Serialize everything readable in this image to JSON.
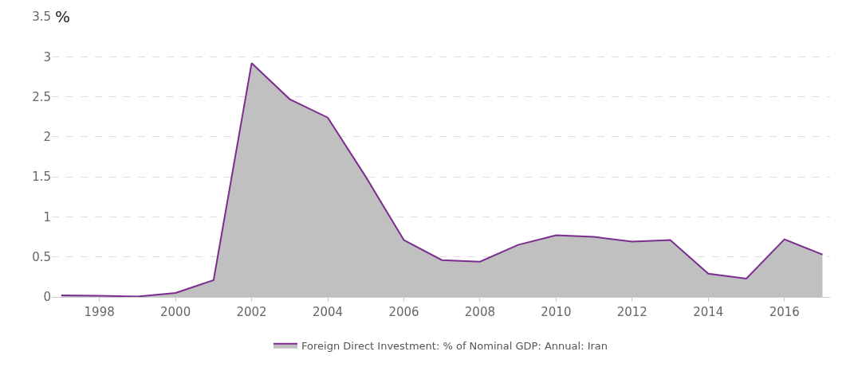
{
  "chart_data": {
    "type": "area",
    "ylabel": "%",
    "x": [
      1997,
      1998,
      1999,
      2000,
      2001,
      2002,
      2003,
      2004,
      2005,
      2006,
      2007,
      2008,
      2009,
      2010,
      2011,
      2012,
      2013,
      2014,
      2015,
      2016,
      2017
    ],
    "series": [
      {
        "name": "Foreign Direct Investment: % of Nominal GDP: Annual: Iran",
        "color": "#7b2d8e",
        "values": [
          0.02,
          0.015,
          0.005,
          0.05,
          0.21,
          2.92,
          2.47,
          2.24,
          1.5,
          0.71,
          0.46,
          0.44,
          0.65,
          0.77,
          0.75,
          0.69,
          0.71,
          0.29,
          0.23,
          0.72,
          0.53
        ]
      }
    ],
    "xlim": [
      1996.75,
      2017.2
    ],
    "xticks": [
      1998,
      2000,
      2002,
      2004,
      2006,
      2008,
      2010,
      2012,
      2014,
      2016
    ],
    "ylim": [
      0,
      3.5
    ],
    "yticks": [
      0,
      0.5,
      1,
      1.5,
      2,
      2.5,
      3,
      3.5
    ],
    "grid": "y",
    "legend": "bottom",
    "marker": "none",
    "line_style": "solid"
  }
}
